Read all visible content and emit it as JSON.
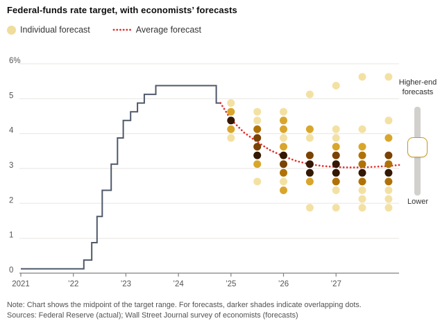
{
  "title": "Federal-funds rate target, with economists’ forecasts",
  "legend": {
    "individual_label": "Individual forecast",
    "average_label": "Average forecast"
  },
  "slider": {
    "top_label_line1": "Higher-end",
    "top_label_line2": "forecasts",
    "bottom_label": "Lower"
  },
  "notes": {
    "note": "Note: Chart shows the midpoint of the target range. For forecasts, darker shades indicate overlapping dots.",
    "sources": "Sources: Federal Reserve (actual); Wall Street Journal survey of economists (forecasts)"
  },
  "colors": {
    "actual_line": "#4E586A",
    "average_line": "#E03131",
    "gridline": "#E7E6E2",
    "axis": "#818181",
    "axis_label": "#555555",
    "legend_dot": "#F0DC9B",
    "slider_track": "#D1D0CC",
    "slider_handle_border": "#C49B2C"
  },
  "chart_data": {
    "type": "line+scatter",
    "title": "Federal-funds rate target, with economists’ forecasts",
    "xlabel": "",
    "ylabel": "",
    "xlim": [
      2021,
      2028.2
    ],
    "ylim": [
      0,
      6.3
    ],
    "grid": "horizontal",
    "legend_position": "top-left",
    "x_ticks": [
      {
        "label": "2021",
        "year": 2021
      },
      {
        "label": "’22",
        "year": 2022
      },
      {
        "label": "’23",
        "year": 2023
      },
      {
        "label": "’24",
        "year": 2024
      },
      {
        "label": "’25",
        "year": 2025
      },
      {
        "label": "’26",
        "year": 2026
      },
      {
        "label": "’27",
        "year": 2027
      }
    ],
    "y_ticks": [
      {
        "label": "0",
        "value": 0
      },
      {
        "label": "1",
        "value": 1
      },
      {
        "label": "2",
        "value": 2
      },
      {
        "label": "3",
        "value": 3
      },
      {
        "label": "4",
        "value": 4
      },
      {
        "label": "5",
        "value": 5
      },
      {
        "label": "6%",
        "value": 6
      }
    ],
    "actual_rate_steps": [
      [
        2021.0,
        0.125
      ],
      [
        2022.2,
        0.375
      ],
      [
        2022.35,
        0.875
      ],
      [
        2022.45,
        1.625
      ],
      [
        2022.55,
        2.375
      ],
      [
        2022.72,
        3.125
      ],
      [
        2022.84,
        3.875
      ],
      [
        2022.95,
        4.375
      ],
      [
        2023.09,
        4.625
      ],
      [
        2023.22,
        4.875
      ],
      [
        2023.35,
        5.125
      ],
      [
        2023.57,
        5.375
      ],
      [
        2024.72,
        4.875
      ]
    ],
    "actual_end_x": 2024.8,
    "shade_colors": {
      "1": "#F3E1A4",
      "2": "#D9A62C",
      "3": "#B07207",
      "4": "#7A4203",
      "5": "#331803"
    },
    "forecast_columns": [
      {
        "x": 2025.0,
        "dots": [
          [
            4.875,
            1
          ],
          [
            4.625,
            2
          ],
          [
            4.375,
            5
          ],
          [
            4.125,
            2
          ],
          [
            3.875,
            1
          ]
        ]
      },
      {
        "x": 2025.5,
        "dots": [
          [
            4.625,
            1
          ],
          [
            4.375,
            1
          ],
          [
            4.125,
            3
          ],
          [
            3.875,
            4
          ],
          [
            3.625,
            4
          ],
          [
            3.375,
            5
          ],
          [
            3.125,
            2
          ],
          [
            2.625,
            1
          ]
        ]
      },
      {
        "x": 2026.0,
        "dots": [
          [
            4.625,
            1
          ],
          [
            4.375,
            2
          ],
          [
            4.125,
            2
          ],
          [
            3.875,
            1
          ],
          [
            3.625,
            2
          ],
          [
            3.375,
            5
          ],
          [
            3.125,
            4
          ],
          [
            2.875,
            3
          ],
          [
            2.625,
            1
          ],
          [
            2.375,
            2
          ]
        ]
      },
      {
        "x": 2026.5,
        "dots": [
          [
            5.125,
            1
          ],
          [
            4.125,
            2
          ],
          [
            3.875,
            1
          ],
          [
            3.375,
            4
          ],
          [
            3.125,
            5
          ],
          [
            2.875,
            5
          ],
          [
            2.625,
            2
          ],
          [
            1.875,
            1
          ]
        ]
      },
      {
        "x": 2027.0,
        "dots": [
          [
            5.375,
            1
          ],
          [
            4.125,
            1
          ],
          [
            3.875,
            1
          ],
          [
            3.625,
            2
          ],
          [
            3.375,
            4
          ],
          [
            3.125,
            5
          ],
          [
            2.875,
            5
          ],
          [
            2.625,
            3
          ],
          [
            2.375,
            1
          ],
          [
            1.875,
            1
          ]
        ]
      },
      {
        "x": 2027.5,
        "dots": [
          [
            5.625,
            1
          ],
          [
            4.125,
            1
          ],
          [
            3.625,
            2
          ],
          [
            3.375,
            3
          ],
          [
            3.125,
            3
          ],
          [
            2.875,
            5
          ],
          [
            2.625,
            3
          ],
          [
            2.375,
            1
          ],
          [
            2.125,
            1
          ],
          [
            1.875,
            1
          ]
        ]
      },
      {
        "x": 2028.0,
        "dots": [
          [
            5.625,
            1
          ],
          [
            4.375,
            1
          ],
          [
            3.875,
            2
          ],
          [
            3.375,
            4
          ],
          [
            3.125,
            3
          ],
          [
            2.875,
            5
          ],
          [
            2.625,
            3
          ],
          [
            2.375,
            1
          ],
          [
            2.125,
            1
          ],
          [
            1.875,
            1
          ]
        ]
      }
    ],
    "average_forecast_points": [
      [
        2024.8,
        4.875
      ],
      [
        2025.0,
        4.4
      ],
      [
        2025.25,
        4.03
      ],
      [
        2025.5,
        3.76
      ],
      [
        2025.75,
        3.52
      ],
      [
        2026.0,
        3.35
      ],
      [
        2026.25,
        3.21
      ],
      [
        2026.5,
        3.12
      ],
      [
        2026.75,
        3.07
      ],
      [
        2027.0,
        3.04
      ],
      [
        2027.25,
        3.03
      ],
      [
        2027.5,
        3.03
      ],
      [
        2027.75,
        3.05
      ],
      [
        2028.0,
        3.07
      ],
      [
        2028.2,
        3.1
      ]
    ]
  }
}
